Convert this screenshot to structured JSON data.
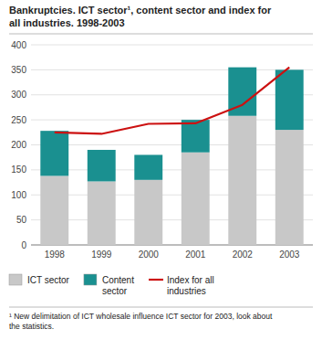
{
  "chart_data": {
    "type": "bar",
    "title": "Bankruptcies. ICT sector¹, content sector and index for\nall industries. 1998-2003",
    "annotations": [
      "¹ New delimitation of ICT wholesale influence ICT sector for 2003, look about\nthe statistics."
    ],
    "categories": [
      "1998",
      "1999",
      "2000",
      "2001",
      "2002",
      "2003"
    ],
    "series": [
      {
        "name": "ICT sector",
        "type": "bar",
        "color": "#c8c8c8",
        "values": [
          138,
          127,
          130,
          185,
          258,
          230
        ]
      },
      {
        "name": "Content\nsector",
        "type": "bar",
        "color": "#1a9090",
        "values": [
          90,
          63,
          50,
          65,
          97,
          120
        ]
      },
      {
        "name": "Index for all\nindustries",
        "type": "line",
        "color": "#cc1111",
        "values": [
          225,
          222,
          242,
          243,
          280,
          355
        ]
      }
    ],
    "stacked": true,
    "ylim": [
      0,
      400
    ],
    "yticks": [
      0,
      50,
      100,
      150,
      200,
      250,
      300,
      350,
      400
    ],
    "grid": true,
    "legend": "bottom"
  }
}
